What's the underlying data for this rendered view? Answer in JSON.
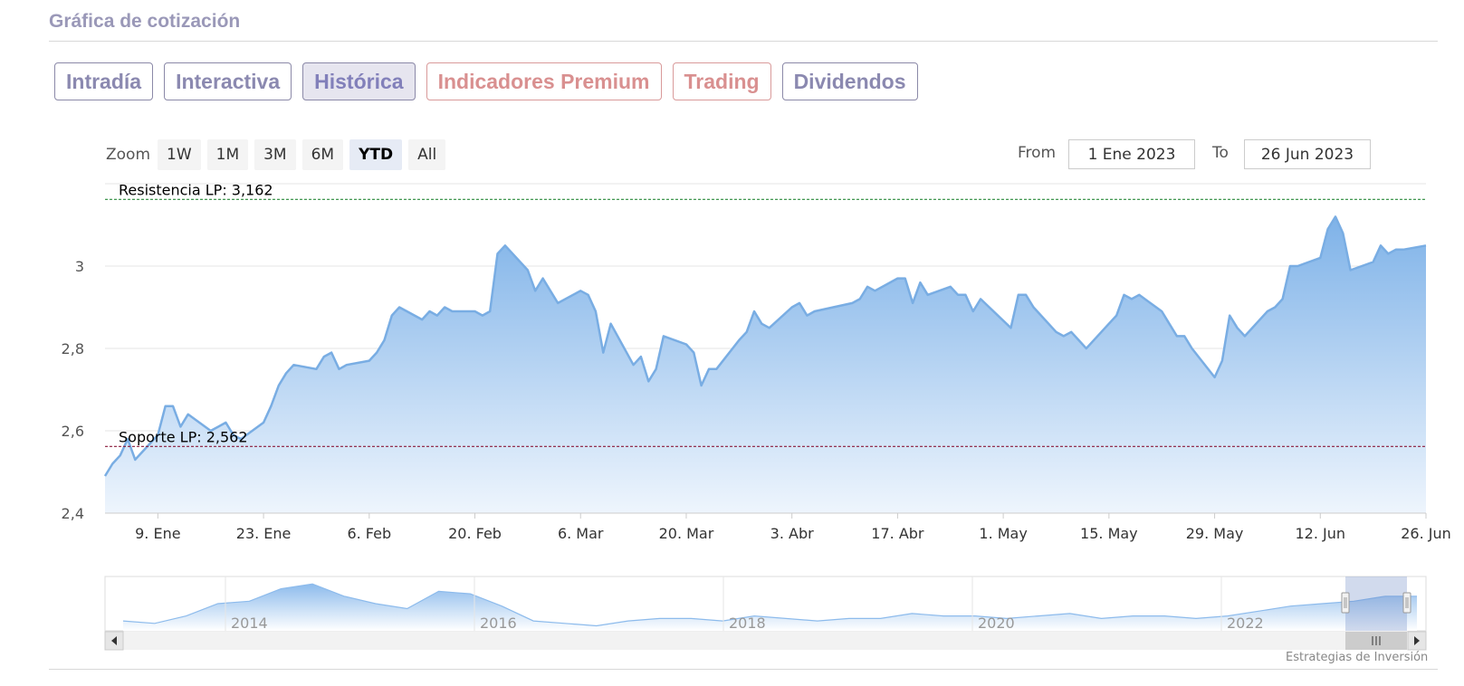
{
  "header": {
    "title": "Gráfica de cotización"
  },
  "tabs": [
    {
      "label": "Intradía",
      "state": "normal"
    },
    {
      "label": "Interactiva",
      "state": "normal"
    },
    {
      "label": "Histórica",
      "state": "active"
    },
    {
      "label": "Indicadores Premium",
      "state": "premium"
    },
    {
      "label": "Trading",
      "state": "premium"
    },
    {
      "label": "Dividendos",
      "state": "normal"
    }
  ],
  "toolbar": {
    "zoom_label": "Zoom",
    "zoom_buttons": [
      "1W",
      "1M",
      "3M",
      "6M",
      "YTD",
      "All"
    ],
    "zoom_selected": "YTD",
    "from_label": "From",
    "from_value": "1 Ene 2023",
    "to_label": "To",
    "to_value": "26 Jun 2023"
  },
  "credit": "Estrategias de Inversión",
  "chart_data": {
    "type": "area",
    "ylim": [
      2.4,
      3.2
    ],
    "y_ticks": [
      "2,4",
      "2,6",
      "2,8",
      "3"
    ],
    "x_ticks": [
      "9. Ene",
      "23. Ene",
      "6. Feb",
      "20. Feb",
      "6. Mar",
      "20. Mar",
      "3. Abr",
      "17. Abr",
      "1. May",
      "15. May",
      "29. May",
      "12. Jun",
      "26. Jun"
    ],
    "x": [
      "2023-01-02",
      "2023-01-03",
      "2023-01-04",
      "2023-01-05",
      "2023-01-06",
      "2023-01-09",
      "2023-01-10",
      "2023-01-11",
      "2023-01-12",
      "2023-01-13",
      "2023-01-16",
      "2023-01-17",
      "2023-01-18",
      "2023-01-19",
      "2023-01-20",
      "2023-01-23",
      "2023-01-24",
      "2023-01-25",
      "2023-01-26",
      "2023-01-27",
      "2023-01-30",
      "2023-01-31",
      "2023-02-01",
      "2023-02-02",
      "2023-02-03",
      "2023-02-06",
      "2023-02-07",
      "2023-02-08",
      "2023-02-09",
      "2023-02-10",
      "2023-02-13",
      "2023-02-14",
      "2023-02-15",
      "2023-02-16",
      "2023-02-17",
      "2023-02-20",
      "2023-02-21",
      "2023-02-22",
      "2023-02-23",
      "2023-02-24",
      "2023-02-27",
      "2023-02-28",
      "2023-03-01",
      "2023-03-02",
      "2023-03-03",
      "2023-03-06",
      "2023-03-07",
      "2023-03-08",
      "2023-03-09",
      "2023-03-10",
      "2023-03-13",
      "2023-03-14",
      "2023-03-15",
      "2023-03-16",
      "2023-03-17",
      "2023-03-20",
      "2023-03-21",
      "2023-03-22",
      "2023-03-23",
      "2023-03-24",
      "2023-03-27",
      "2023-03-28",
      "2023-03-29",
      "2023-03-30",
      "2023-03-31",
      "2023-04-03",
      "2023-04-04",
      "2023-04-05",
      "2023-04-06",
      "2023-04-11",
      "2023-04-12",
      "2023-04-13",
      "2023-04-14",
      "2023-04-17",
      "2023-04-18",
      "2023-04-19",
      "2023-04-20",
      "2023-04-21",
      "2023-04-24",
      "2023-04-25",
      "2023-04-26",
      "2023-04-27",
      "2023-04-28",
      "2023-05-02",
      "2023-05-03",
      "2023-05-04",
      "2023-05-05",
      "2023-05-08",
      "2023-05-09",
      "2023-05-10",
      "2023-05-11",
      "2023-05-12",
      "2023-05-15",
      "2023-05-16",
      "2023-05-17",
      "2023-05-18",
      "2023-05-19",
      "2023-05-22",
      "2023-05-23",
      "2023-05-24",
      "2023-05-25",
      "2023-05-26",
      "2023-05-29",
      "2023-05-30",
      "2023-05-31",
      "2023-06-01",
      "2023-06-02",
      "2023-06-05",
      "2023-06-06",
      "2023-06-07",
      "2023-06-08",
      "2023-06-09",
      "2023-06-12",
      "2023-06-13",
      "2023-06-14",
      "2023-06-15",
      "2023-06-16",
      "2023-06-19",
      "2023-06-20",
      "2023-06-21",
      "2023-06-22",
      "2023-06-23",
      "2023-06-26"
    ],
    "series": [
      {
        "values": [
          2.49,
          2.52,
          2.54,
          2.58,
          2.53,
          2.59,
          2.66,
          2.66,
          2.61,
          2.64,
          2.6,
          2.61,
          2.62,
          2.59,
          2.58,
          2.62,
          2.66,
          2.71,
          2.74,
          2.76,
          2.75,
          2.78,
          2.79,
          2.75,
          2.76,
          2.77,
          2.79,
          2.82,
          2.88,
          2.9,
          2.87,
          2.89,
          2.88,
          2.9,
          2.89,
          2.89,
          2.88,
          2.89,
          3.03,
          3.05,
          2.99,
          2.94,
          2.97,
          2.94,
          2.91,
          2.94,
          2.93,
          2.89,
          2.79,
          2.86,
          2.76,
          2.78,
          2.72,
          2.75,
          2.83,
          2.81,
          2.79,
          2.71,
          2.75,
          2.75,
          2.82,
          2.84,
          2.89,
          2.86,
          2.85,
          2.9,
          2.91,
          2.88,
          2.89,
          2.91,
          2.92,
          2.95,
          2.94,
          2.97,
          2.97,
          2.91,
          2.96,
          2.93,
          2.95,
          2.93,
          2.93,
          2.89,
          2.92,
          2.85,
          2.93,
          2.93,
          2.9,
          2.84,
          2.83,
          2.84,
          2.82,
          2.8,
          2.86,
          2.88,
          2.93,
          2.92,
          2.93,
          2.89,
          2.86,
          2.83,
          2.83,
          2.8,
          2.73,
          2.77,
          2.88,
          2.85,
          2.83,
          2.89,
          2.9,
          2.92,
          3.0,
          3.0,
          3.02,
          3.09,
          3.12,
          3.08,
          2.99,
          3.01,
          3.05,
          3.03,
          3.04,
          3.04,
          3.05
        ]
      }
    ],
    "plot_lines": [
      {
        "label": "Resistencia LP: 3,162",
        "value": 3.162,
        "color": "#2a8a3a"
      },
      {
        "label": "Soporte LP: 2,562",
        "value": 2.562,
        "color": "#8a1a3a"
      }
    ],
    "navigator": {
      "x_ticks": [
        "2014",
        "2016",
        "2018",
        "2020",
        "2022"
      ],
      "values": [
        2.5,
        2.45,
        2.6,
        2.85,
        2.9,
        3.15,
        3.25,
        3.0,
        2.85,
        2.75,
        3.1,
        3.05,
        2.8,
        2.5,
        2.45,
        2.4,
        2.5,
        2.55,
        2.55,
        2.5,
        2.6,
        2.55,
        2.5,
        2.55,
        2.55,
        2.65,
        2.6,
        2.6,
        2.55,
        2.6,
        2.65,
        2.55,
        2.6,
        2.6,
        2.55,
        2.6,
        2.7,
        2.8,
        2.85,
        2.9,
        3.0,
        3.0
      ]
    },
    "grid": true
  }
}
